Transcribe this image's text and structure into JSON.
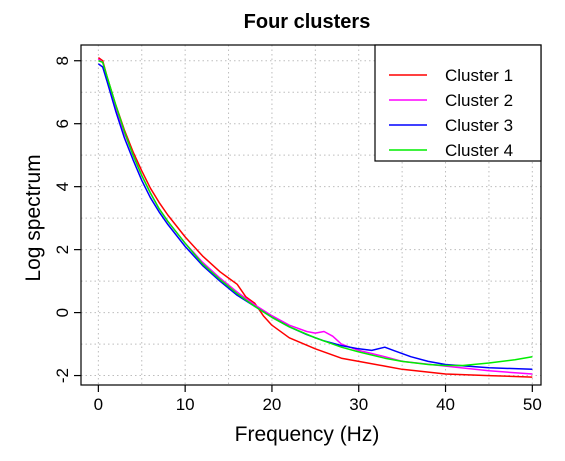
{
  "chart_data": {
    "type": "line",
    "title": "Four clusters",
    "xlabel": "Frequency (Hz)",
    "ylabel": "Log spectrum",
    "xlim": [
      -2,
      51
    ],
    "ylim": [
      -2.3,
      8.5
    ],
    "xticks": [
      0,
      10,
      20,
      30,
      40,
      50
    ],
    "xtick_labels": [
      "0",
      "10",
      "20",
      "30",
      "40",
      "50"
    ],
    "yticks": [
      -2,
      0,
      2,
      4,
      6,
      8
    ],
    "ytick_labels": [
      "-2",
      "0",
      "2",
      "4",
      "6",
      "8"
    ],
    "grid": true,
    "grid_style": "dotted",
    "legend_position": "top-right",
    "series": [
      {
        "name": "Cluster 1",
        "color": "#ff0000",
        "x": [
          0,
          0.5,
          1,
          2,
          3,
          4,
          5,
          6,
          7,
          8,
          10,
          12,
          14,
          15,
          16,
          17,
          17.5,
          18,
          19,
          20,
          22,
          25,
          28,
          30,
          33,
          35,
          40,
          45,
          50
        ],
        "y": [
          8.1,
          8.0,
          7.5,
          6.6,
          5.8,
          5.1,
          4.5,
          3.95,
          3.5,
          3.1,
          2.4,
          1.8,
          1.3,
          1.1,
          0.9,
          0.5,
          0.4,
          0.3,
          -0.1,
          -0.4,
          -0.8,
          -1.15,
          -1.45,
          -1.55,
          -1.7,
          -1.8,
          -1.95,
          -2.0,
          -2.05
        ]
      },
      {
        "name": "Cluster 2",
        "color": "#ff00ff",
        "x": [
          0,
          0.5,
          1,
          2,
          3,
          4,
          5,
          6,
          7,
          8,
          10,
          12,
          14,
          16,
          18,
          20,
          22,
          24,
          25,
          26,
          27,
          28,
          30,
          33,
          35,
          40,
          45,
          50
        ],
        "y": [
          8.05,
          7.95,
          7.45,
          6.5,
          5.7,
          5.0,
          4.35,
          3.8,
          3.3,
          2.9,
          2.2,
          1.6,
          1.1,
          0.65,
          0.25,
          -0.1,
          -0.4,
          -0.6,
          -0.65,
          -0.6,
          -0.75,
          -1.0,
          -1.2,
          -1.4,
          -1.55,
          -1.7,
          -1.85,
          -1.95
        ]
      },
      {
        "name": "Cluster 3",
        "color": "#0000ff",
        "x": [
          0,
          0.5,
          1,
          2,
          3,
          4,
          5,
          6,
          7,
          8,
          10,
          12,
          14,
          16,
          18,
          20,
          22,
          24,
          26,
          28,
          30,
          31.5,
          33,
          34,
          36,
          38,
          40,
          45,
          50
        ],
        "y": [
          7.9,
          7.8,
          7.35,
          6.4,
          5.55,
          4.85,
          4.2,
          3.65,
          3.2,
          2.8,
          2.1,
          1.5,
          1.0,
          0.55,
          0.2,
          -0.15,
          -0.45,
          -0.7,
          -0.9,
          -1.05,
          -1.15,
          -1.2,
          -1.1,
          -1.2,
          -1.4,
          -1.55,
          -1.65,
          -1.75,
          -1.8
        ]
      },
      {
        "name": "Cluster 4",
        "color": "#00ee00",
        "x": [
          0,
          0.5,
          1,
          2,
          3,
          4,
          5,
          6,
          7,
          8,
          10,
          12,
          14,
          16,
          18,
          20,
          22,
          25,
          28,
          30,
          33,
          35,
          38,
          40,
          42,
          45,
          48,
          50
        ],
        "y": [
          8.0,
          7.95,
          7.5,
          6.6,
          5.75,
          5.0,
          4.35,
          3.8,
          3.3,
          2.9,
          2.2,
          1.55,
          1.05,
          0.6,
          0.2,
          -0.15,
          -0.45,
          -0.8,
          -1.1,
          -1.25,
          -1.45,
          -1.55,
          -1.65,
          -1.68,
          -1.68,
          -1.6,
          -1.5,
          -1.4
        ]
      }
    ]
  }
}
